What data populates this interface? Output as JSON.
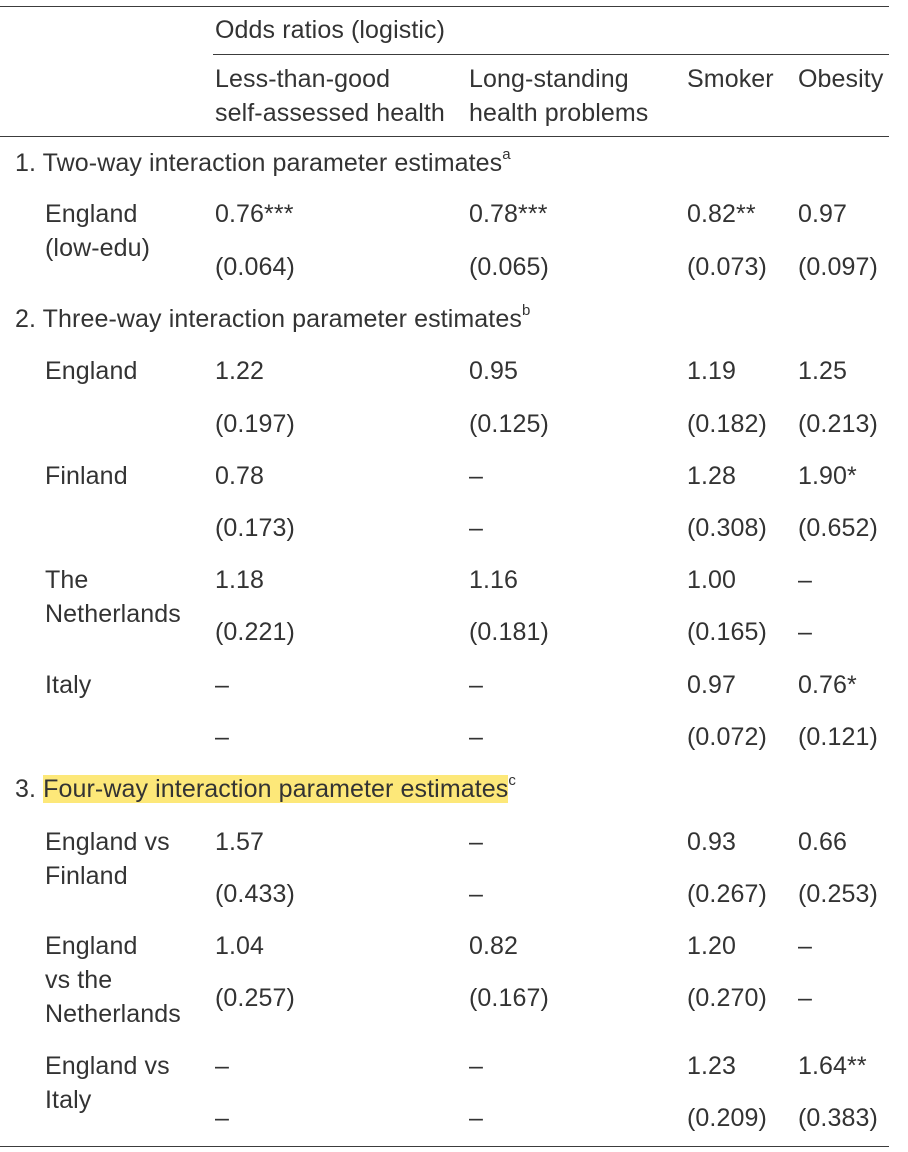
{
  "table": {
    "spanner": "Odds ratios (logistic)",
    "columns": [
      {
        "line1": "Less-than-good",
        "line2": "self-assessed health"
      },
      {
        "line1": "Long-standing",
        "line2": "health problems"
      },
      {
        "line1": "Smoker",
        "line2": ""
      },
      {
        "line1": "Obesity",
        "line2": ""
      }
    ],
    "sections": [
      {
        "title": "1. Two-way interaction parameter estimates",
        "note": "a"
      },
      {
        "prefix": "2. ",
        "title": "Three-way interaction parameter estimates",
        "note": "b"
      },
      {
        "prefix": "3. ",
        "title": "Four-way interaction parameter estimates",
        "note": "c"
      }
    ],
    "rows": [
      {
        "label1": "England",
        "label2": "(low-edu)",
        "label3": "",
        "est": [
          "0.76***",
          "0.78***",
          "0.82**",
          "0.97"
        ],
        "se": [
          "(0.064)",
          "(0.065)",
          "(0.073)",
          "(0.097)"
        ]
      },
      {
        "label1": "England",
        "label2": "",
        "label3": "",
        "est": [
          "1.22",
          "0.95",
          "1.19",
          "1.25"
        ],
        "se": [
          "(0.197)",
          "(0.125)",
          "(0.182)",
          "(0.213)"
        ]
      },
      {
        "label1": "Finland",
        "label2": "",
        "label3": "",
        "est": [
          "0.78",
          "–",
          "1.28",
          "1.90*"
        ],
        "se": [
          "(0.173)",
          "–",
          "(0.308)",
          "(0.652)"
        ]
      },
      {
        "label1": "The",
        "label2": "Netherlands",
        "label3": "",
        "est": [
          "1.18",
          "1.16",
          "1.00",
          "–"
        ],
        "se": [
          "(0.221)",
          "(0.181)",
          "(0.165)",
          "–"
        ]
      },
      {
        "label1": "Italy",
        "label2": "",
        "label3": "",
        "est": [
          "–",
          "–",
          "0.97",
          "0.76*"
        ],
        "se": [
          "–",
          "–",
          "(0.072)",
          "(0.121)"
        ]
      },
      {
        "label1": "England vs",
        "label2": "Finland",
        "label3": "",
        "est": [
          "1.57",
          "–",
          "0.93",
          "0.66"
        ],
        "se": [
          "(0.433)",
          "–",
          "(0.267)",
          "(0.253)"
        ]
      },
      {
        "label1": "England",
        "label2": "vs the",
        "label3": "Netherlands",
        "est": [
          "1.04",
          "0.82",
          "1.20",
          "–"
        ],
        "se": [
          "(0.257)",
          "(0.167)",
          "(0.270)",
          "–"
        ]
      },
      {
        "label1": "England vs",
        "label2": "Italy",
        "label3": "",
        "est": [
          "–",
          "–",
          "1.23",
          "1.64**"
        ],
        "se": [
          "–",
          "–",
          "(0.209)",
          "(0.383)"
        ]
      }
    ]
  }
}
